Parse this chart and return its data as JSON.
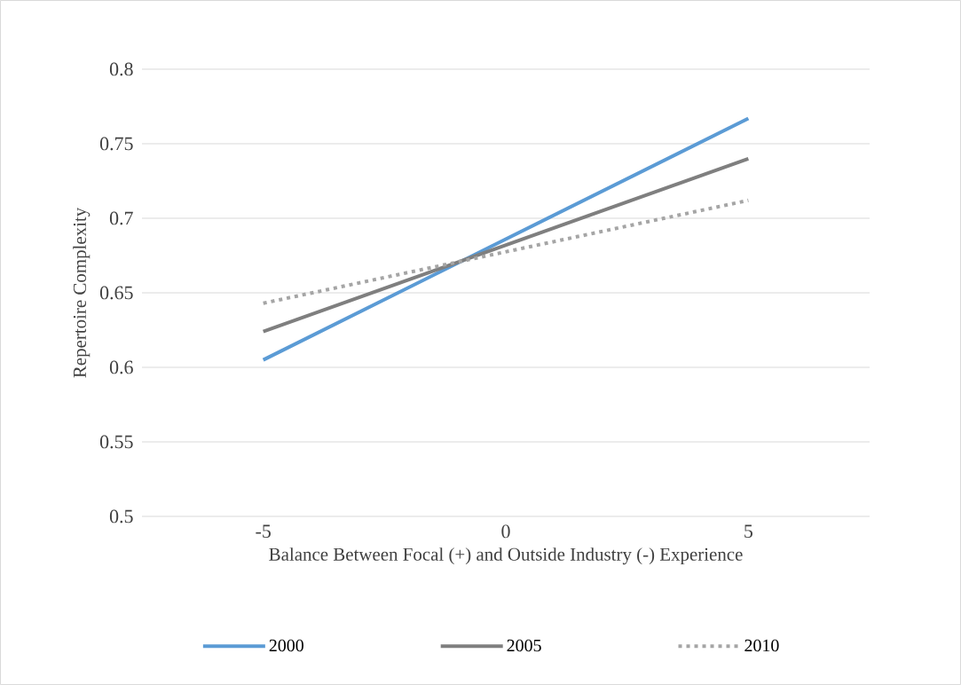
{
  "chart_data": {
    "type": "line",
    "xlabel": "Balance  Between Focal (+) and Outside Industry (-) Experience",
    "ylabel": "Repertoire  Complexity",
    "x": [
      -5,
      5
    ],
    "series": [
      {
        "name": "2000",
        "color": "#5b9bd5",
        "values": [
          0.605,
          0.767
        ]
      },
      {
        "name": "2005",
        "color": "#7f7f7f",
        "values": [
          0.624,
          0.74
        ]
      },
      {
        "name": "2010",
        "color": "#a5a5a5",
        "values": [
          0.643,
          0.712
        ],
        "line_style": "dotted"
      }
    ],
    "xlim": [
      -7.5,
      7.5
    ],
    "xticks": [
      -5,
      0,
      5
    ],
    "ylim": [
      0.5,
      0.8
    ],
    "yticks": [
      0.5,
      0.55,
      0.6,
      0.65,
      0.7,
      0.75,
      0.8
    ],
    "grid": "y",
    "legend": "bottom",
    "line_style": "solid",
    "marker": "none"
  }
}
